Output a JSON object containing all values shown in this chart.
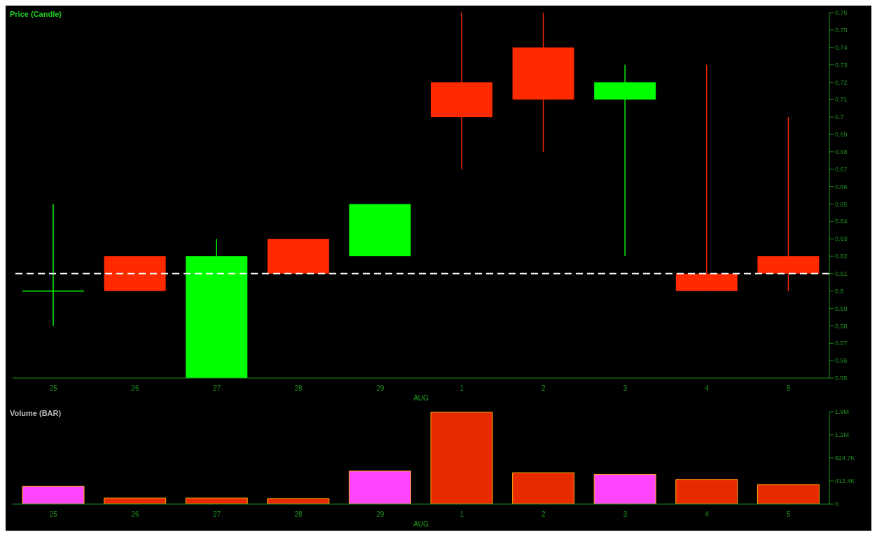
{
  "chart_data": [
    {
      "type": "candlestick",
      "title": "Price (Candle)",
      "categories": [
        "25",
        "26",
        "27",
        "28",
        "29",
        "1",
        "2",
        "3",
        "4",
        "5"
      ],
      "ohlc": [
        [
          0.6,
          0.65,
          0.58,
          0.6
        ],
        [
          0.62,
          0.62,
          0.6,
          0.6
        ],
        [
          0.55,
          0.63,
          0.55,
          0.62
        ],
        [
          0.63,
          0.63,
          0.61,
          0.61
        ],
        [
          0.62,
          0.65,
          0.62,
          0.65
        ],
        [
          0.72,
          0.76,
          0.67,
          0.7
        ],
        [
          0.74,
          0.76,
          0.68,
          0.71
        ],
        [
          0.71,
          0.73,
          0.62,
          0.72
        ],
        [
          0.61,
          0.73,
          0.6,
          0.6
        ],
        [
          0.62,
          0.7,
          0.6,
          0.61
        ]
      ],
      "colors": [
        "#00ff00",
        "#ff2a00",
        "#00ff00",
        "#ff2a00",
        "#00ff00",
        "#ff2a00",
        "#ff2a00",
        "#00ff00",
        "#ff2a00",
        "#ff2a00"
      ],
      "ylim": [
        0.55,
        0.76
      ],
      "yticks": [
        0.55,
        0.56,
        0.57,
        0.58,
        0.59,
        0.6,
        0.61,
        0.62,
        0.63,
        0.64,
        0.65,
        0.66,
        0.67,
        0.68,
        0.69,
        0.7,
        0.71,
        0.72,
        0.73,
        0.74,
        0.75,
        0.76
      ],
      "ref_lines": [
        {
          "axis": "y",
          "value": 0.61,
          "color": "#ffffff",
          "line_style": "dashed"
        }
      ],
      "annotations": [
        "AUG"
      ]
    },
    {
      "type": "bar",
      "title": "Volume (BAR)",
      "categories": [
        "25",
        "26",
        "27",
        "28",
        "29",
        "1",
        "2",
        "3",
        "4",
        "5"
      ],
      "values": [
        320000,
        110000,
        110000,
        100000,
        590000,
        1640000,
        560000,
        530000,
        440000,
        350000
      ],
      "colors": [
        "#ff44ff",
        "#e82a00",
        "#e82a00",
        "#e82a00",
        "#ff44ff",
        "#e82a00",
        "#e82a00",
        "#ff44ff",
        "#e82a00",
        "#e82a00"
      ],
      "ylim": [
        0,
        1649400
      ],
      "yticks": [
        0,
        {
          "value": 412400,
          "label": "412.4K"
        },
        {
          "value": 824700,
          "label": "824.7K"
        },
        {
          "value": 1237100,
          "label": "1.2M"
        },
        {
          "value": 1649400,
          "label": "1.6M"
        }
      ],
      "annotations": [
        "AUG"
      ]
    }
  ]
}
